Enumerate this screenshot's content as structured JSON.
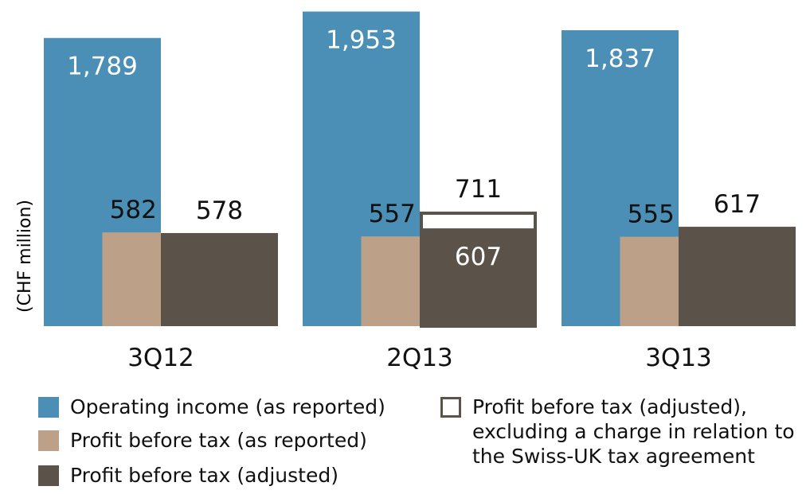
{
  "chart_data": {
    "type": "bar",
    "y_label": "(CHF million)",
    "categories": [
      "3Q12",
      "2Q13",
      "3Q13"
    ],
    "series": [
      {
        "name": "Operating income (as reported)",
        "color": "#4b8fb6",
        "values": [
          1789,
          1953,
          1837
        ],
        "value_labels": [
          "1,789",
          "1,953",
          "1,837"
        ]
      },
      {
        "name": "Profit before tax (as reported)",
        "color": "#bca088",
        "values": [
          582,
          557,
          555
        ]
      },
      {
        "name": "Profit before tax (adjusted)",
        "color": "#5b5249",
        "values": [
          578,
          607,
          617
        ]
      },
      {
        "name": "Profit before tax (adjusted), excluding a charge in relation to the Swiss-UK tax agreement",
        "color": "#ffffff",
        "values": [
          null,
          711,
          null
        ]
      }
    ],
    "ylim": [
      0,
      2000
    ]
  }
}
